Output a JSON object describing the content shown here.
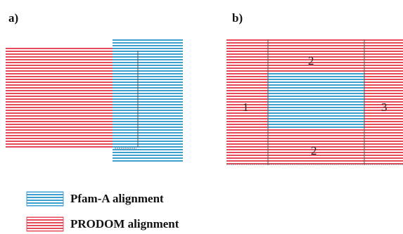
{
  "panels": {
    "a": {
      "label": "a)"
    },
    "b": {
      "label": "b)",
      "region_labels": [
        "1",
        "2",
        "3",
        "2"
      ]
    }
  },
  "legend": {
    "items": [
      {
        "label": "Pfam-A alignment",
        "kind": "pfam"
      },
      {
        "label": "PRODOM alignment",
        "kind": "prodom"
      }
    ]
  },
  "colors": {
    "prodom_stripe": "#e8495a",
    "pfam_stripe": "#3d9fd0",
    "stripe_bg": "#ffffff",
    "divider": "#555555"
  }
}
